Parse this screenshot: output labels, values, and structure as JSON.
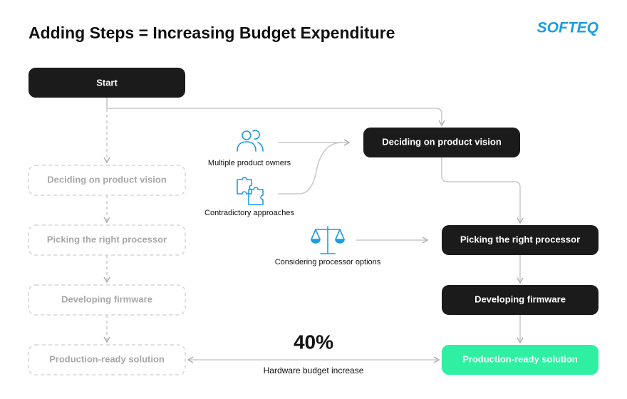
{
  "header": {
    "title": "Adding Steps = Increasing Budget Expenditure",
    "logo": "SOFTEQ"
  },
  "start": "Start",
  "left_steps": [
    "Deciding on product vision",
    "Picking the right processor",
    "Developing firmware",
    "Production-ready solution"
  ],
  "right_steps": [
    "Deciding on product vision",
    "Picking the right processor",
    "Developing firmware",
    "Production-ready solution"
  ],
  "factors": [
    {
      "label": "Multiple product owners"
    },
    {
      "label": "Contradictory approaches"
    },
    {
      "label": "Considering processor options"
    }
  ],
  "metric": {
    "value": "40%",
    "label": "Hardware budget increase"
  }
}
